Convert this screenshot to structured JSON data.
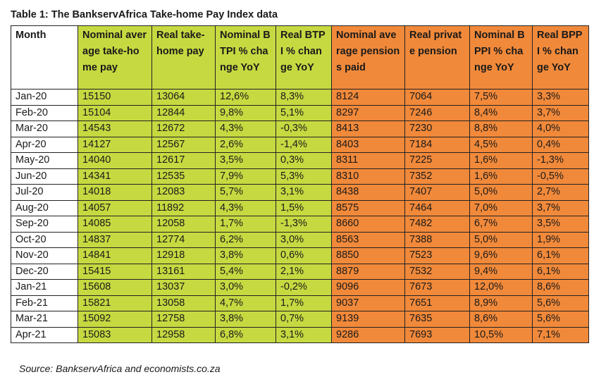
{
  "title": "Table 1: The BankservAfrica Take-home Pay Index data",
  "source": "Source: BankservAfrica and economists.co.za",
  "colors": {
    "green": "#c6d941",
    "orange": "#f1893a"
  },
  "columns": [
    {
      "label": "Month",
      "color": "white"
    },
    {
      "label": "Nominal average take-home pay",
      "color": "green"
    },
    {
      "label": "Real take-home pay",
      "color": "green"
    },
    {
      "label": "Nominal BTPI % change YoY",
      "color": "green"
    },
    {
      "label": "Real BTPI % change YoY",
      "color": "green"
    },
    {
      "label": "Nominal average pensions paid",
      "color": "orange"
    },
    {
      "label": "Real private pension",
      "color": "orange"
    },
    {
      "label": "Nominal BPPI % change YoY",
      "color": "orange"
    },
    {
      "label": "Real BPPI % change YoY",
      "color": "orange"
    }
  ],
  "rows": [
    [
      "Jan-20",
      "15150",
      "13064",
      "12,6%",
      "8,3%",
      "8124",
      "7064",
      "7,5%",
      "3,3%"
    ],
    [
      "Feb-20",
      "15104",
      "12844",
      "9,8%",
      "5,1%",
      "8297",
      "7246",
      "8,4%",
      "3,7%"
    ],
    [
      "Mar-20",
      "14543",
      "12672",
      "4,3%",
      "-0,3%",
      "8413",
      "7230",
      "8,8%",
      "4,0%"
    ],
    [
      "Apr-20",
      "14127",
      "12567",
      "2,6%",
      "-1,4%",
      "8403",
      "7184",
      "4,5%",
      "0,4%"
    ],
    [
      "May-20",
      "14040",
      "12617",
      "3,5%",
      "0,3%",
      "8311",
      "7225",
      "1,6%",
      "-1,3%"
    ],
    [
      "Jun-20",
      "14341",
      "12535",
      "7,9%",
      "5,3%",
      "8310",
      "7352",
      "1,6%",
      "-0,5%"
    ],
    [
      "Jul-20",
      "14018",
      "12083",
      "5,7%",
      "3,1%",
      "8438",
      "7407",
      "5,0%",
      "2,7%"
    ],
    [
      "Aug-20",
      "14057",
      "11892",
      "4,3%",
      "1,5%",
      "8575",
      "7464",
      "7,0%",
      "3,7%"
    ],
    [
      "Sep-20",
      "14085",
      "12058",
      "1,7%",
      "-1,3%",
      "8660",
      "7482",
      "6,7%",
      "3,5%"
    ],
    [
      "Oct-20",
      "14837",
      "12774",
      "6,2%",
      "3,0%",
      "8563",
      "7388",
      "5,0%",
      "1,9%"
    ],
    [
      "Nov-20",
      "14841",
      "12918",
      "3,8%",
      "0,6%",
      "8850",
      "7523",
      "9,6%",
      "6,1%"
    ],
    [
      "Dec-20",
      "15415",
      "13161",
      "5,4%",
      "2,1%",
      "8879",
      "7532",
      "9,4%",
      "6,1%"
    ],
    [
      "Jan-21",
      "15608",
      "13037",
      "3,0%",
      "-0,2%",
      "9096",
      "7673",
      "12,0%",
      "8,6%"
    ],
    [
      "Feb-21",
      "15821",
      "13058",
      "4,7%",
      "1,7%",
      "9037",
      "7651",
      "8,9%",
      "5,6%"
    ],
    [
      "Mar-21",
      "15092",
      "12758",
      "3,8%",
      "0,7%",
      "9139",
      "7635",
      "8,6%",
      "5,6%"
    ],
    [
      "Apr-21",
      "15083",
      "12958",
      "6,8%",
      "3,1%",
      "9286",
      "7693",
      "10,5%",
      "7,1%"
    ]
  ]
}
